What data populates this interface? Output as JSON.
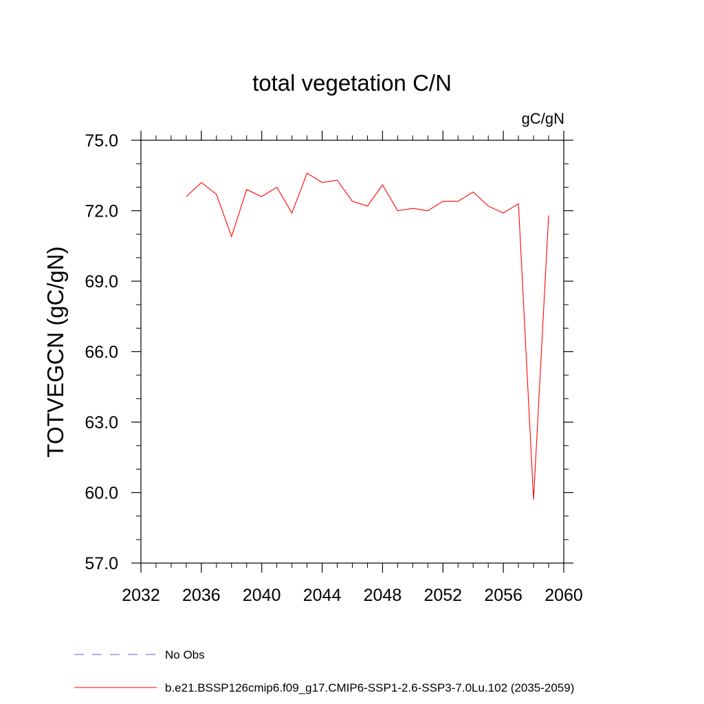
{
  "chart_data": {
    "type": "line",
    "title": "total vegetation C/N",
    "units": "gC/gN",
    "ylabel": "TOTVEGCN  (gC/gN)",
    "xlabel": "",
    "xlim": [
      2032,
      2060
    ],
    "ylim": [
      57.0,
      75.0
    ],
    "x_ticks": [
      2032,
      2036,
      2040,
      2044,
      2048,
      2052,
      2056,
      2060
    ],
    "x_tick_labels": [
      "2032",
      "2036",
      "2040",
      "2044",
      "2048",
      "2052",
      "2056",
      "2060"
    ],
    "y_ticks": [
      57,
      60,
      63,
      66,
      69,
      72,
      75
    ],
    "y_tick_labels": [
      "57.0",
      "60.0",
      "63.0",
      "66.0",
      "69.0",
      "72.0",
      "75.0"
    ],
    "grid": false,
    "legend_position": "bottom-left",
    "series": [
      {
        "name": "b.e21.BSSP126cmip6.f09_g17.CMIP6-SSP1-2.6-SSP3-7.0Lu.102 (2035-2059)",
        "color": "#ff0000",
        "x": [
          2035,
          2036,
          2037,
          2038,
          2039,
          2040,
          2041,
          2042,
          2043,
          2044,
          2045,
          2046,
          2047,
          2048,
          2049,
          2050,
          2051,
          2052,
          2053,
          2054,
          2055,
          2056,
          2057,
          2058,
          2059
        ],
        "y": [
          72.6,
          73.2,
          72.7,
          70.9,
          72.9,
          72.6,
          73.0,
          71.9,
          73.6,
          73.2,
          73.3,
          72.4,
          72.2,
          73.1,
          72.0,
          72.1,
          72.0,
          72.4,
          72.4,
          72.8,
          72.2,
          71.9,
          72.3,
          59.7,
          71.8
        ]
      }
    ],
    "legend": [
      {
        "label": "No Obs",
        "color": "#6a5acd",
        "dash": "dashed"
      },
      {
        "label": "b.e21.BSSP126cmip6.f09_g17.CMIP6-SSP1-2.6-SSP3-7.0Lu.102 (2035-2059)",
        "color": "#ff0000",
        "dash": "solid"
      }
    ]
  }
}
